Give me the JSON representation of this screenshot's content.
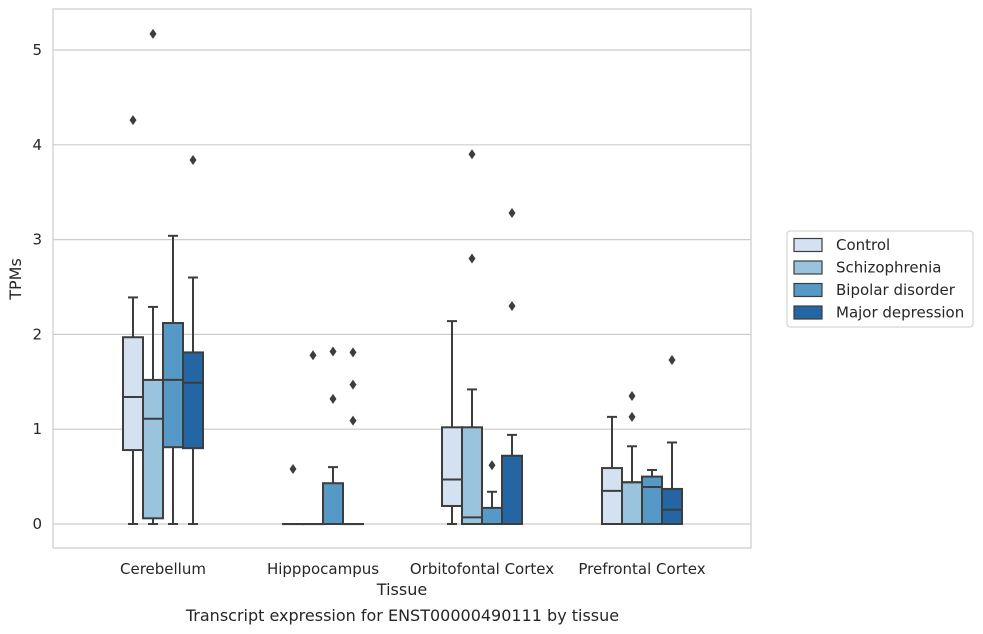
{
  "caption": "Transcript expression for ENST00000490111 by tissue",
  "chart_data": {
    "type": "boxplot",
    "xlabel": "Tissue",
    "ylabel": "TPMs",
    "ylim": [
      -0.25,
      5.43
    ],
    "yticks": [
      0,
      1,
      2,
      3,
      4,
      5
    ],
    "grid": "horizontal",
    "legend_position": "right",
    "categories": [
      "Cerebellum",
      "Hipppocampus",
      "Orbitofontal Cortex",
      "Prefrontal Cortex"
    ],
    "series": [
      {
        "name": "Control",
        "color": "#d4e1f1",
        "boxes": [
          {
            "whisker_low": 0,
            "q1": 0.78,
            "median": 1.34,
            "q3": 1.97,
            "whisker_high": 2.39,
            "outliers": [
              4.26
            ]
          },
          {
            "whisker_low": 0,
            "q1": 0,
            "median": 0,
            "q3": 0,
            "whisker_high": 0,
            "outliers": [
              0.58
            ]
          },
          {
            "whisker_low": 0,
            "q1": 0.19,
            "median": 0.47,
            "q3": 1.02,
            "whisker_high": 2.14,
            "outliers": []
          },
          {
            "whisker_low": 0,
            "q1": 0,
            "median": 0.35,
            "q3": 0.59,
            "whisker_high": 1.13,
            "outliers": []
          }
        ]
      },
      {
        "name": "Schizophrenia",
        "color": "#9ac4de",
        "boxes": [
          {
            "whisker_low": 0,
            "q1": 0.06,
            "median": 1.11,
            "q3": 1.52,
            "whisker_high": 2.29,
            "outliers": [
              5.17
            ]
          },
          {
            "whisker_low": 0,
            "q1": 0,
            "median": 0,
            "q3": 0,
            "whisker_high": 0,
            "outliers": [
              1.78
            ]
          },
          {
            "whisker_low": 0,
            "q1": 0,
            "median": 0.07,
            "q3": 1.02,
            "whisker_high": 1.42,
            "outliers": [
              3.9,
              2.8
            ]
          },
          {
            "whisker_low": 0,
            "q1": 0,
            "median": 0.44,
            "q3": 0.44,
            "whisker_high": 0.82,
            "outliers": [
              1.35,
              1.13
            ]
          }
        ]
      },
      {
        "name": "Bipolar disorder",
        "color": "#5699c6",
        "boxes": [
          {
            "whisker_low": 0,
            "q1": 0.81,
            "median": 1.52,
            "q3": 2.12,
            "whisker_high": 3.04,
            "outliers": []
          },
          {
            "whisker_low": 0,
            "q1": 0,
            "median": 0,
            "q3": 0.43,
            "whisker_high": 0.6,
            "outliers": [
              1.82,
              1.32
            ]
          },
          {
            "whisker_low": 0,
            "q1": 0,
            "median": 0,
            "q3": 0.17,
            "whisker_high": 0.34,
            "outliers": [
              0.62
            ]
          },
          {
            "whisker_low": 0,
            "q1": 0,
            "median": 0.39,
            "q3": 0.5,
            "whisker_high": 0.57,
            "outliers": []
          }
        ]
      },
      {
        "name": "Major depression",
        "color": "#2465a3",
        "boxes": [
          {
            "whisker_low": 0,
            "q1": 0.8,
            "median": 1.49,
            "q3": 1.81,
            "whisker_high": 2.6,
            "outliers": [
              3.84
            ]
          },
          {
            "whisker_low": 0,
            "q1": 0,
            "median": 0,
            "q3": 0,
            "whisker_high": 0,
            "outliers": [
              1.81,
              1.47,
              1.09
            ]
          },
          {
            "whisker_low": 0,
            "q1": 0,
            "median": 0,
            "q3": 0.72,
            "whisker_high": 0.94,
            "outliers": [
              3.28,
              2.3
            ]
          },
          {
            "whisker_low": 0,
            "q1": 0,
            "median": 0.15,
            "q3": 0.37,
            "whisker_high": 0.86,
            "outliers": [
              1.73
            ]
          }
        ]
      }
    ]
  }
}
